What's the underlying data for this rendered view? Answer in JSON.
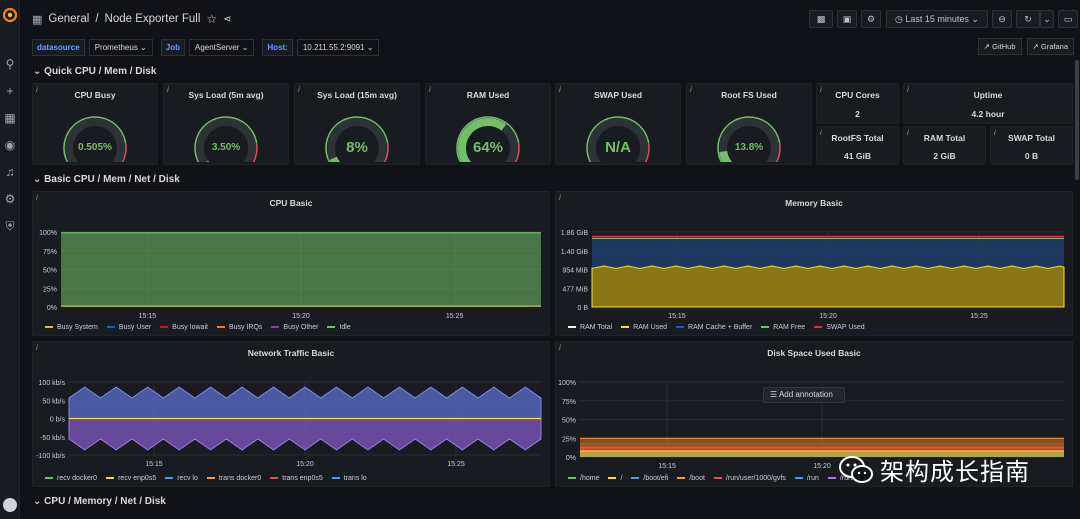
{
  "breadcrumb": {
    "folder": "General",
    "separator": "/",
    "dashboard": "Node Exporter Full"
  },
  "toolbar": {
    "time_range": "Last 15 minutes"
  },
  "variables": [
    {
      "label": "datasource",
      "value": "Prometheus"
    },
    {
      "label": "Job",
      "value": "AgentServer"
    },
    {
      "label": "Host:",
      "value": "10.211.55.2:9091"
    }
  ],
  "links": {
    "github": "GitHub",
    "grafana": "Grafana"
  },
  "rows": {
    "quick": "Quick CPU / Mem / Disk",
    "basic": "Basic CPU / Mem / Net / Disk",
    "cpu_mem": "CPU / Memory / Net / Disk"
  },
  "gauges": [
    {
      "title": "CPU Busy",
      "value": "0.505%",
      "fraction": 0.005,
      "color": "#73bf69"
    },
    {
      "title": "Sys Load (5m avg)",
      "value": "3.50%",
      "fraction": 0.035,
      "color": "#73bf69"
    },
    {
      "title": "Sys Load (15m avg)",
      "value": "8%",
      "fraction": 0.08,
      "color": "#73bf69"
    },
    {
      "title": "RAM Used",
      "value": "64%",
      "fraction": 0.64,
      "color": "#73bf69"
    },
    {
      "title": "SWAP Used",
      "value": "N/A",
      "fraction": 0,
      "color": "#73bf69"
    },
    {
      "title": "Root FS Used",
      "value": "13.8%",
      "fraction": 0.138,
      "color": "#73bf69"
    }
  ],
  "stats": [
    {
      "title": "CPU Cores",
      "value": "2"
    },
    {
      "title": "Uptime",
      "value": "4.2 hour"
    },
    {
      "title": "RootFS Total",
      "value": "41 GiB"
    },
    {
      "title": "RAM Total",
      "value": "2 GiB"
    },
    {
      "title": "SWAP Total",
      "value": "0 B"
    }
  ],
  "panels": {
    "cpu_basic": {
      "title": "CPU Basic",
      "yticks": [
        "100%",
        "75%",
        "50%",
        "25%",
        "0%"
      ],
      "xticks": [
        "15:15",
        "15:20",
        "15:25"
      ],
      "legend": [
        {
          "name": "Busy System",
          "color": "#eab839"
        },
        {
          "name": "Busy User",
          "color": "#1f60c4"
        },
        {
          "name": "Busy Iowait",
          "color": "#c4162a"
        },
        {
          "name": "Busy IRQs",
          "color": "#ff780a"
        },
        {
          "name": "Busy Other",
          "color": "#8f3bb8"
        },
        {
          "name": "Idle",
          "color": "#73bf69"
        }
      ]
    },
    "memory_basic": {
      "title": "Memory Basic",
      "yticks": [
        "1.86 GiB",
        "1.40 GiB",
        "954 MiB",
        "477 MiB",
        "0 B"
      ],
      "xticks": [
        "15:15",
        "15:20",
        "15:25"
      ],
      "legend": [
        {
          "name": "RAM Total",
          "color": "#f2f2f2"
        },
        {
          "name": "RAM Used",
          "color": "#fade2a"
        },
        {
          "name": "RAM Cache + Buffer",
          "color": "#1f60c4"
        },
        {
          "name": "RAM Free",
          "color": "#73bf69"
        },
        {
          "name": "SWAP Used",
          "color": "#e02f44"
        }
      ]
    },
    "network": {
      "title": "Network Traffic Basic",
      "yticks": [
        "100 kb/s",
        "50 kb/s",
        "0 b/s",
        "-50 kb/s",
        "-100 kb/s"
      ],
      "xticks": [
        "15:15",
        "15:20",
        "15:25"
      ],
      "legend": [
        {
          "name": "recv docker0",
          "color": "#73bf69"
        },
        {
          "name": "recv enp0s5",
          "color": "#fade2a"
        },
        {
          "name": "recv lo",
          "color": "#5794f2"
        },
        {
          "name": "trans docker0",
          "color": "#ff9830"
        },
        {
          "name": "trans enp0s5",
          "color": "#f2495c"
        },
        {
          "name": "trans lo",
          "color": "#5794f2"
        }
      ]
    },
    "disk": {
      "title": "Disk Space Used Basic",
      "yticks": [
        "100%",
        "75%",
        "50%",
        "25%",
        "0%"
      ],
      "xticks": [
        "15:15",
        "15:20"
      ],
      "tooltip": "Add annotation",
      "legend": [
        {
          "name": "/home",
          "color": "#73bf69"
        },
        {
          "name": "/",
          "color": "#fade2a"
        },
        {
          "name": "/boot/efi",
          "color": "#5794f2"
        },
        {
          "name": "/boot",
          "color": "#ff9830"
        },
        {
          "name": "/run/user/1000/gvfs",
          "color": "#f2495c"
        },
        {
          "name": "/run",
          "color": "#5794f2"
        },
        {
          "name": "/run/",
          "color": "#b877d9"
        }
      ]
    }
  },
  "chart_data": [
    {
      "type": "area",
      "title": "CPU Basic",
      "x": [
        "15:15",
        "15:20",
        "15:25"
      ],
      "ylim": [
        0,
        100
      ],
      "series": [
        {
          "name": "Idle",
          "values": [
            99,
            99,
            99
          ]
        },
        {
          "name": "Busy System",
          "values": [
            0.5,
            0.5,
            0.5
          ]
        }
      ]
    },
    {
      "type": "area",
      "title": "Memory Basic",
      "x": [
        "15:15",
        "15:20",
        "15:25"
      ],
      "ylim": [
        0,
        1.86
      ],
      "series": [
        {
          "name": "RAM Total",
          "values": [
            1.86,
            1.86,
            1.86
          ]
        },
        {
          "name": "RAM Used",
          "values": [
            1.2,
            1.2,
            1.2
          ]
        }
      ]
    },
    {
      "type": "area",
      "title": "Network Traffic Basic",
      "x": [
        "15:15",
        "15:20",
        "15:25"
      ],
      "ylim": [
        -100,
        100
      ]
    },
    {
      "type": "area",
      "title": "Disk Space Used Basic",
      "x": [
        "15:15",
        "15:20"
      ],
      "ylim": [
        0,
        100
      ]
    }
  ],
  "watermark": "架构成长指南"
}
